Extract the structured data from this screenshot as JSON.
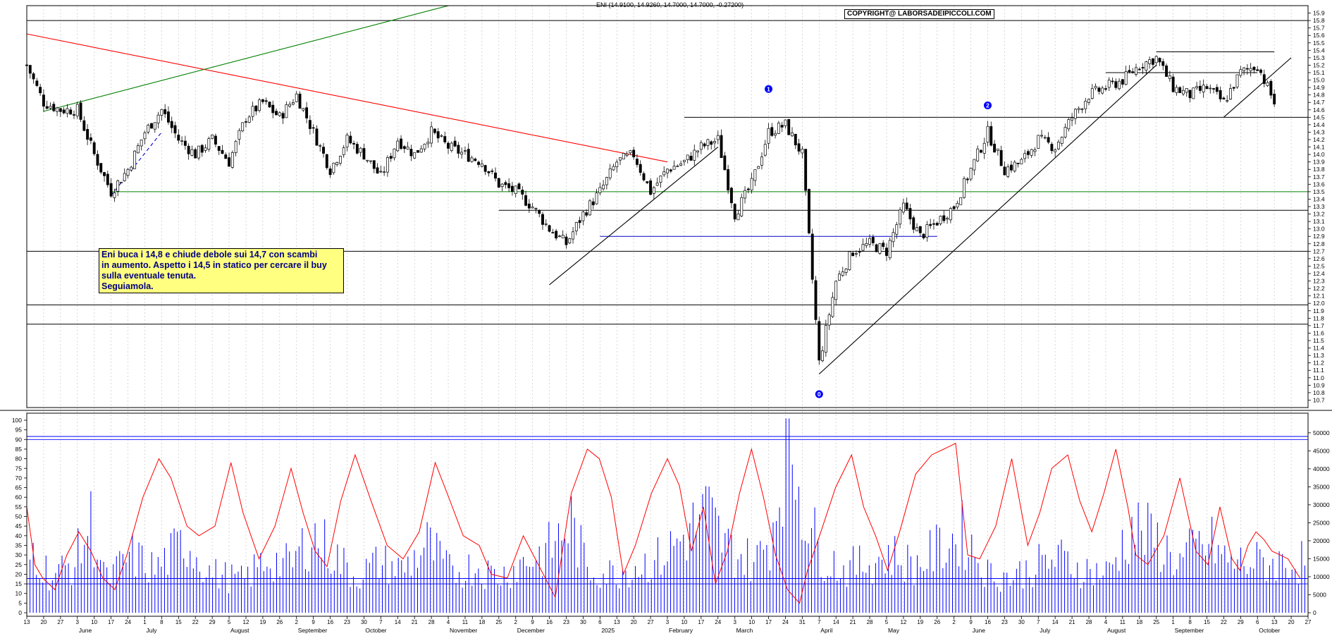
{
  "header": {
    "ohlc_label": "ENI (14.9100, 14.9260, 14.7000, 14.7000, -0.27200)",
    "copyright": "COPYRIGHT@ LABORSADEIPICCOLI.COM"
  },
  "note": {
    "lines": [
      "Eni buca i 14,8 e chiude debole sui 14,7 con scambi",
      "in aumento. Aspetto i 14,5 in statico per cercare il buy",
      "sulla eventuale tenuta.",
      "Seguiamola."
    ]
  },
  "colors": {
    "candle": "#000000",
    "trend_red": "#ff0000",
    "trend_green": "#008000",
    "support_green": "#008000",
    "blue_level": "#0000cc",
    "oscillator": "#ff0000",
    "volume": "#0000ff",
    "marker": "#0000ff"
  },
  "chart_data": [
    {
      "type": "candlestick",
      "title": "",
      "ylim": [
        10.6,
        16.0
      ],
      "y_ticks": [
        10.7,
        10.8,
        10.9,
        11.0,
        11.1,
        11.2,
        11.3,
        11.4,
        11.5,
        11.6,
        11.7,
        11.8,
        11.9,
        12.0,
        12.1,
        12.2,
        12.3,
        12.4,
        12.5,
        12.6,
        12.7,
        12.8,
        12.9,
        13.0,
        13.1,
        13.2,
        13.3,
        13.4,
        13.5,
        13.6,
        13.7,
        13.8,
        13.9,
        14.0,
        14.1,
        14.2,
        14.3,
        14.4,
        14.5,
        14.6,
        14.7,
        14.8,
        14.9,
        15.0,
        15.1,
        15.2,
        15.3,
        15.4,
        15.5,
        15.6,
        15.7,
        15.8,
        15.9
      ],
      "date_range": [
        "2024-05-13",
        "2025-10-27"
      ],
      "last_close": 14.7,
      "path": [
        [
          "2024-05-13",
          15.2
        ],
        [
          "2024-05-20",
          14.7
        ],
        [
          "2024-05-27",
          14.6
        ],
        [
          "2024-06-03",
          14.6
        ],
        [
          "2024-06-10",
          14.0
        ],
        [
          "2024-06-17",
          13.5
        ],
        [
          "2024-06-24",
          13.8
        ],
        [
          "2024-07-01",
          14.3
        ],
        [
          "2024-07-08",
          14.6
        ],
        [
          "2024-07-15",
          14.2
        ],
        [
          "2024-07-22",
          14.0
        ],
        [
          "2024-07-29",
          14.2
        ],
        [
          "2024-08-05",
          13.9
        ],
        [
          "2024-08-12",
          14.5
        ],
        [
          "2024-08-19",
          14.7
        ],
        [
          "2024-08-26",
          14.5
        ],
        [
          "2024-09-02",
          14.8
        ],
        [
          "2024-09-09",
          14.3
        ],
        [
          "2024-09-16",
          13.8
        ],
        [
          "2024-09-23",
          14.2
        ],
        [
          "2024-09-30",
          14.0
        ],
        [
          "2024-10-07",
          13.7
        ],
        [
          "2024-10-14",
          14.2
        ],
        [
          "2024-10-21",
          14.0
        ],
        [
          "2024-10-28",
          14.3
        ],
        [
          "2024-11-04",
          14.1
        ],
        [
          "2024-11-11",
          14.0
        ],
        [
          "2024-11-18",
          13.9
        ],
        [
          "2024-11-25",
          13.6
        ],
        [
          "2024-12-02",
          13.5
        ],
        [
          "2024-12-09",
          13.3
        ],
        [
          "2024-12-16",
          13.0
        ],
        [
          "2024-12-23",
          12.8
        ],
        [
          "2024-12-30",
          13.2
        ],
        [
          "2025-01-06",
          13.5
        ],
        [
          "2025-01-13",
          13.9
        ],
        [
          "2025-01-20",
          14.0
        ],
        [
          "2025-01-27",
          13.5
        ],
        [
          "2025-02-03",
          13.8
        ],
        [
          "2025-02-10",
          13.9
        ],
        [
          "2025-02-17",
          14.1
        ],
        [
          "2025-02-24",
          14.2
        ],
        [
          "2025-03-03",
          13.2
        ],
        [
          "2025-03-10",
          13.6
        ],
        [
          "2025-03-17",
          14.3
        ],
        [
          "2025-03-24",
          14.4
        ],
        [
          "2025-03-31",
          14.0
        ],
        [
          "2025-04-07",
          11.2
        ],
        [
          "2025-04-14",
          12.3
        ],
        [
          "2025-04-21",
          12.7
        ],
        [
          "2025-04-28",
          12.8
        ],
        [
          "2025-05-05",
          12.7
        ],
        [
          "2025-05-12",
          13.3
        ],
        [
          "2025-05-19",
          12.9
        ],
        [
          "2025-05-26",
          13.1
        ],
        [
          "2025-06-02",
          13.3
        ],
        [
          "2025-06-09",
          13.8
        ],
        [
          "2025-06-16",
          14.3
        ],
        [
          "2025-06-23",
          13.8
        ],
        [
          "2025-06-30",
          13.9
        ],
        [
          "2025-07-07",
          14.2
        ],
        [
          "2025-07-14",
          14.1
        ],
        [
          "2025-07-21",
          14.5
        ],
        [
          "2025-07-28",
          14.8
        ],
        [
          "2025-08-04",
          14.9
        ],
        [
          "2025-08-11",
          15.0
        ],
        [
          "2025-08-18",
          15.2
        ],
        [
          "2025-08-25",
          15.3
        ],
        [
          "2025-09-01",
          14.9
        ],
        [
          "2025-09-08",
          14.8
        ],
        [
          "2025-09-15",
          14.9
        ],
        [
          "2025-09-22",
          14.7
        ],
        [
          "2025-09-29",
          15.1
        ],
        [
          "2025-10-06",
          15.2
        ],
        [
          "2025-10-13",
          14.7
        ]
      ],
      "horizontal_levels": [
        {
          "value": 15.8,
          "color": "#000000",
          "from": "2024-05-13",
          "to": "2025-10-27"
        },
        {
          "value": 14.5,
          "color": "#000000",
          "from": "2025-02-10",
          "to": "2025-10-27"
        },
        {
          "value": 13.5,
          "color": "#008000",
          "from": "2024-06-17",
          "to": "2025-10-27"
        },
        {
          "value": 13.25,
          "color": "#000000",
          "from": "2024-11-25",
          "to": "2025-10-27"
        },
        {
          "value": 12.9,
          "color": "#0000cc",
          "from": "2025-01-06",
          "to": "2025-05-26"
        },
        {
          "value": 12.7,
          "color": "#000000",
          "from": "2024-05-13",
          "to": "2025-10-27"
        },
        {
          "value": 11.98,
          "color": "#000000",
          "from": "2024-05-13",
          "to": "2025-10-27"
        },
        {
          "value": 11.72,
          "color": "#000000",
          "from": "2024-05-13",
          "to": "2025-10-27"
        },
        {
          "value": 15.38,
          "color": "#000000",
          "from": "2025-08-25",
          "to": "2025-10-13"
        },
        {
          "value": 15.1,
          "color": "#000000",
          "from": "2025-08-04",
          "to": "2025-10-06"
        }
      ],
      "trend_lines": [
        {
          "color": "#ff0000",
          "from": [
            "2024-05-13",
            15.62
          ],
          "to": [
            "2025-02-03",
            13.9
          ]
        },
        {
          "color": "#008000",
          "from": [
            "2024-05-20",
            14.58
          ],
          "to": [
            "2024-11-04",
            16.0
          ]
        },
        {
          "color": "#000000",
          "from": [
            "2024-12-16",
            12.25
          ],
          "to": [
            "2025-02-24",
            14.1
          ]
        },
        {
          "color": "#000000",
          "from": [
            "2025-04-07",
            11.05
          ],
          "to": [
            "2025-08-25",
            15.2
          ]
        },
        {
          "color": "#000000",
          "from": [
            "2025-09-22",
            14.5
          ],
          "to": [
            "2025-10-20",
            15.3
          ]
        },
        {
          "color": "#0000cc",
          "from": [
            "2024-06-17",
            13.45
          ],
          "to": [
            "2024-07-08",
            14.3
          ],
          "dashed": true
        }
      ],
      "markers": [
        {
          "label": "0",
          "date": "2025-04-07",
          "value": 10.78
        },
        {
          "label": "1",
          "date": "2025-03-17",
          "value": 14.88
        },
        {
          "label": "2",
          "date": "2025-06-16",
          "value": 14.66
        }
      ],
      "x_tick_labels": [
        "13",
        "20",
        "27",
        "3",
        "10",
        "17",
        "24",
        "1",
        "8",
        "15",
        "22",
        "29",
        "5",
        "12",
        "19",
        "26",
        "2",
        "9",
        "16",
        "23",
        "30",
        "7",
        "14",
        "21",
        "28",
        "4",
        "11",
        "18",
        "25",
        "2",
        "9",
        "16",
        "23",
        "30",
        "6",
        "13",
        "20",
        "27",
        "3",
        "10",
        "17",
        "24",
        "3",
        "10",
        "17",
        "24",
        "31",
        "7",
        "14",
        "21",
        "28",
        "5",
        "12",
        "19",
        "26",
        "2",
        "9",
        "16",
        "23",
        "30",
        "7",
        "14",
        "21",
        "28",
        "4",
        "11",
        "18",
        "25",
        "1",
        "8",
        "15",
        "22",
        "29",
        "6",
        "13",
        "20",
        "27"
      ],
      "month_labels": [
        "June",
        "July",
        "August",
        "September",
        "October",
        "November",
        "December",
        "2025",
        "February",
        "March",
        "April",
        "May",
        "June",
        "July",
        "August",
        "September",
        "October"
      ]
    },
    {
      "type": "bar",
      "title": "",
      "series_name": "",
      "ylim": [
        0,
        55000
      ],
      "y_ticks": [
        0,
        5000,
        10000,
        15000,
        20000,
        25000,
        30000,
        35000,
        40000,
        45000,
        50000
      ],
      "reference_levels": [
        9500,
        49000
      ],
      "note": "",
      "volume_profile": [
        [
          0,
          12000
        ],
        [
          8,
          18000
        ],
        [
          30,
          10000
        ],
        [
          60,
          14000
        ],
        [
          80,
          25000
        ],
        [
          100,
          9000
        ],
        [
          130,
          16000
        ],
        [
          160,
          12000
        ],
        [
          200,
          20000
        ],
        [
          230,
          11000
        ],
        [
          270,
          9000
        ],
        [
          300,
          15000
        ],
        [
          330,
          13000
        ],
        [
          355,
          22000
        ],
        [
          380,
          17000
        ],
        [
          410,
          10000
        ],
        [
          440,
          14000
        ],
        [
          470,
          12000
        ],
        [
          500,
          19000
        ],
        [
          530,
          11000
        ],
        [
          560,
          13000
        ],
        [
          590,
          10000
        ],
        [
          620,
          14000
        ],
        [
          650,
          17000
        ],
        [
          680,
          25000
        ],
        [
          700,
          12000
        ],
        [
          730,
          11000
        ],
        [
          760,
          13000
        ],
        [
          790,
          15000
        ],
        [
          820,
          21000
        ],
        [
          850,
          28000
        ],
        [
          870,
          19000
        ],
        [
          890,
          16000
        ],
        [
          910,
          14000
        ],
        [
          930,
          22000
        ],
        [
          950,
          52000
        ],
        [
          970,
          30000
        ],
        [
          990,
          17000
        ],
        [
          1020,
          12000
        ],
        [
          1050,
          14000
        ],
        [
          1080,
          16000
        ],
        [
          1110,
          13000
        ],
        [
          1140,
          18000
        ],
        [
          1170,
          22000
        ],
        [
          1200,
          11000
        ],
        [
          1230,
          10000
        ],
        [
          1260,
          13000
        ],
        [
          1290,
          15000
        ],
        [
          1320,
          12000
        ],
        [
          1350,
          11000
        ],
        [
          1380,
          24000
        ],
        [
          1410,
          20000
        ],
        [
          1440,
          14000
        ],
        [
          1460,
          18000
        ],
        [
          1480,
          19000
        ],
        [
          1500,
          14000
        ]
      ]
    },
    {
      "type": "line",
      "title": "",
      "series_name": "",
      "ylim": [
        0,
        100
      ],
      "y_ticks": [
        0,
        5,
        10,
        15,
        20,
        25,
        30,
        35,
        40,
        45,
        50,
        55,
        60,
        65,
        70,
        75,
        80,
        85,
        90,
        95,
        100
      ],
      "reference_levels": [
        15,
        90
      ],
      "points": [
        [
          0,
          55
        ],
        [
          10,
          25
        ],
        [
          20,
          18
        ],
        [
          35,
          12
        ],
        [
          50,
          30
        ],
        [
          65,
          42
        ],
        [
          80,
          32
        ],
        [
          95,
          18
        ],
        [
          110,
          12
        ],
        [
          125,
          30
        ],
        [
          145,
          60
        ],
        [
          165,
          80
        ],
        [
          180,
          70
        ],
        [
          200,
          45
        ],
        [
          215,
          40
        ],
        [
          235,
          45
        ],
        [
          255,
          78
        ],
        [
          270,
          52
        ],
        [
          290,
          28
        ],
        [
          310,
          45
        ],
        [
          330,
          75
        ],
        [
          345,
          52
        ],
        [
          360,
          32
        ],
        [
          375,
          24
        ],
        [
          392,
          58
        ],
        [
          410,
          82
        ],
        [
          430,
          58
        ],
        [
          450,
          35
        ],
        [
          470,
          28
        ],
        [
          490,
          42
        ],
        [
          510,
          78
        ],
        [
          525,
          62
        ],
        [
          545,
          40
        ],
        [
          565,
          35
        ],
        [
          580,
          20
        ],
        [
          600,
          18
        ],
        [
          620,
          40
        ],
        [
          640,
          24
        ],
        [
          660,
          8
        ],
        [
          680,
          62
        ],
        [
          700,
          85
        ],
        [
          715,
          80
        ],
        [
          730,
          60
        ],
        [
          745,
          20
        ],
        [
          760,
          35
        ],
        [
          780,
          62
        ],
        [
          800,
          80
        ],
        [
          815,
          66
        ],
        [
          830,
          32
        ],
        [
          845,
          55
        ],
        [
          860,
          15
        ],
        [
          875,
          32
        ],
        [
          890,
          62
        ],
        [
          905,
          85
        ],
        [
          920,
          60
        ],
        [
          935,
          30
        ],
        [
          950,
          12
        ],
        [
          965,
          5
        ],
        [
          975,
          22
        ],
        [
          990,
          40
        ],
        [
          1010,
          65
        ],
        [
          1030,
          82
        ],
        [
          1045,
          55
        ],
        [
          1060,
          40
        ],
        [
          1075,
          22
        ],
        [
          1090,
          42
        ],
        [
          1110,
          72
        ],
        [
          1130,
          82
        ],
        [
          1145,
          85
        ],
        [
          1160,
          88
        ],
        [
          1175,
          30
        ],
        [
          1190,
          28
        ],
        [
          1210,
          45
        ],
        [
          1230,
          80
        ],
        [
          1250,
          35
        ],
        [
          1265,
          52
        ],
        [
          1280,
          75
        ],
        [
          1300,
          82
        ],
        [
          1315,
          58
        ],
        [
          1330,
          42
        ],
        [
          1345,
          62
        ],
        [
          1360,
          85
        ],
        [
          1375,
          55
        ],
        [
          1385,
          30
        ],
        [
          1400,
          25
        ],
        [
          1420,
          40
        ],
        [
          1440,
          70
        ],
        [
          1460,
          32
        ],
        [
          1475,
          25
        ],
        [
          1490,
          55
        ],
        [
          1505,
          28
        ],
        [
          1515,
          22
        ],
        [
          1525,
          35
        ],
        [
          1535,
          42
        ],
        [
          1545,
          38
        ],
        [
          1555,
          32
        ],
        [
          1565,
          30
        ],
        [
          1575,
          28
        ],
        [
          1590,
          18
        ]
      ]
    }
  ]
}
